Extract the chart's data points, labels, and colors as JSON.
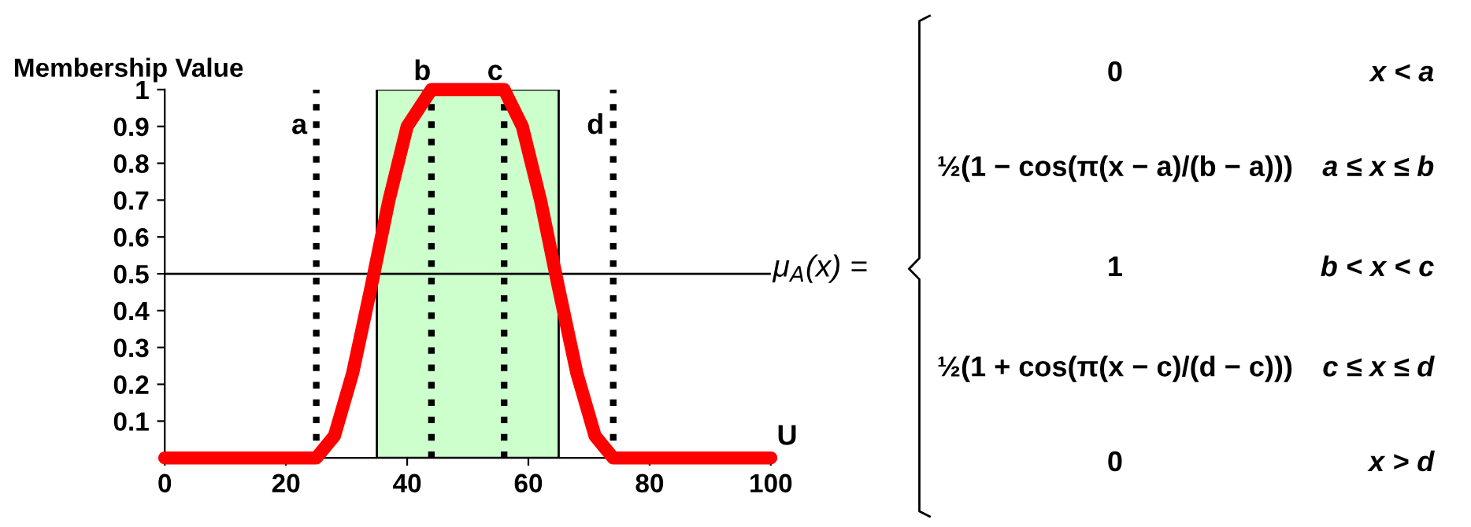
{
  "chart_data": {
    "type": "line",
    "xlabel": "U",
    "ylabel": "Membership Value",
    "x": [
      0,
      25,
      28,
      31,
      34,
      37,
      40,
      44,
      56,
      59,
      62,
      65,
      68,
      71,
      74,
      100
    ],
    "series": [
      {
        "color": "#ff0000",
        "values": [
          0,
          0,
          0.06,
          0.23,
          0.46,
          0.7,
          0.9,
          1,
          1,
          0.9,
          0.7,
          0.46,
          0.23,
          0.06,
          0,
          0
        ]
      }
    ],
    "xlim": [
      0,
      100
    ],
    "xticks": [
      0,
      20,
      40,
      60,
      80,
      100
    ],
    "ylim": [
      0,
      1
    ],
    "yticks": [
      0.1,
      0.2,
      0.3,
      0.4,
      0.5,
      0.6,
      0.7,
      0.8,
      0.9,
      1
    ],
    "ref_lines": [
      {
        "axis": "x",
        "value": 25,
        "label": "a",
        "color": "#000000",
        "line_style": "dotted"
      },
      {
        "axis": "x",
        "value": 44,
        "label": "b",
        "color": "#000000",
        "line_style": "dotted"
      },
      {
        "axis": "x",
        "value": 56,
        "label": "c",
        "color": "#000000",
        "line_style": "dotted"
      },
      {
        "axis": "x",
        "value": 74,
        "label": "d",
        "color": "#000000",
        "line_style": "dotted"
      },
      {
        "axis": "y",
        "value": 0.5,
        "color": "#000000",
        "line_style": "solid"
      }
    ],
    "bands": [
      {
        "axis": "x",
        "from": 35,
        "to": 65,
        "color": "#ccffcc"
      }
    ],
    "grid": false,
    "marker": "none",
    "line_style": "solid",
    "annotations": [
      "μ$_{A}$(x) =",
      "0",
      "x < a",
      "½(1 − cos(π(x − a)/(b − a)))",
      "a ≤ x ≤ b",
      "1",
      "b < x < c",
      "½(1 + cos(π(x − c)/(d − c)))",
      "c ≤ x ≤ d",
      "0",
      "x > d"
    ]
  }
}
